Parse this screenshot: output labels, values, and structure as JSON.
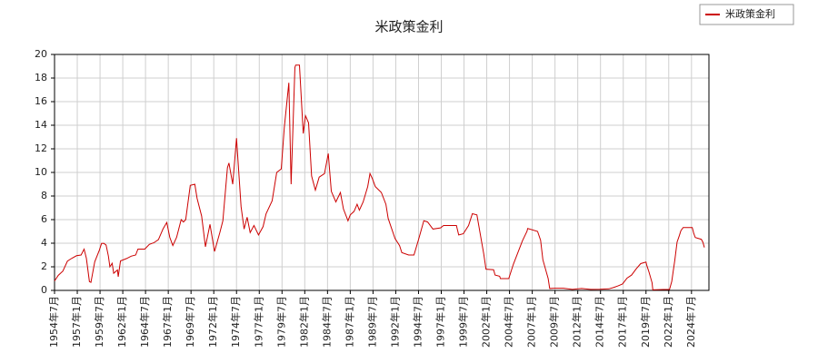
{
  "chart_data": {
    "type": "line",
    "title": "米政策金利",
    "x": [
      "1954-07",
      "1954-12",
      "1955-06",
      "1955-12",
      "1956-06",
      "1956-12",
      "1957-06",
      "1957-10",
      "1958-01",
      "1958-05",
      "1958-07",
      "1958-12",
      "1959-06",
      "1959-09",
      "1959-12",
      "1960-03",
      "1960-06",
      "1960-08",
      "1960-11",
      "1961-01",
      "1961-06",
      "1961-07",
      "1961-10",
      "1962-06",
      "1962-12",
      "1963-06",
      "1963-09",
      "1964-06",
      "1964-12",
      "1965-06",
      "1965-12",
      "1966-06",
      "1966-11",
      "1967-03",
      "1967-07",
      "1967-12",
      "1968-06",
      "1968-09",
      "1968-12",
      "1969-06",
      "1969-12",
      "1970-03",
      "1970-09",
      "1971-02",
      "1971-08",
      "1972-02",
      "1972-09",
      "1973-01",
      "1973-07",
      "1973-09",
      "1974-02",
      "1974-07",
      "1974-10",
      "1975-01",
      "1975-05",
      "1975-09",
      "1976-01",
      "1976-06",
      "1976-12",
      "1977-06",
      "1977-10",
      "1978-06",
      "1978-12",
      "1979-06",
      "1979-10",
      "1980-04",
      "1980-07",
      "1980-12",
      "1981-01",
      "1981-06",
      "1981-11",
      "1982-02",
      "1982-06",
      "1982-10",
      "1983-03",
      "1983-08",
      "1984-03",
      "1984-08",
      "1984-12",
      "1985-06",
      "1985-12",
      "1986-04",
      "1986-10",
      "1987-01",
      "1987-06",
      "1987-10",
      "1988-01",
      "1988-06",
      "1988-12",
      "1989-03",
      "1989-06",
      "1989-10",
      "1990-06",
      "1990-12",
      "1991-03",
      "1991-12",
      "1992-06",
      "1992-09",
      "1993-06",
      "1994-01",
      "1994-07",
      "1995-02",
      "1995-07",
      "1996-02",
      "1996-12",
      "1997-04",
      "1998-09",
      "1998-12",
      "1999-06",
      "2000-01",
      "2000-06",
      "2000-12",
      "2001-03",
      "2001-09",
      "2001-12",
      "2002-10",
      "2002-12",
      "2003-06",
      "2003-07",
      "2004-06",
      "2004-12",
      "2005-12",
      "2006-06",
      "2006-07",
      "2007-08",
      "2007-12",
      "2008-03",
      "2008-10",
      "2008-12",
      "2009-06",
      "2010-06",
      "2011-06",
      "2012-06",
      "2013-06",
      "2014-06",
      "2015-06",
      "2015-12",
      "2016-06",
      "2016-12",
      "2017-06",
      "2017-12",
      "2018-06",
      "2018-12",
      "2019-07",
      "2019-08",
      "2019-11",
      "2020-03",
      "2020-04",
      "2021-06",
      "2022-02",
      "2022-05",
      "2022-07",
      "2022-09",
      "2022-12",
      "2023-03",
      "2023-05",
      "2023-08",
      "2024-08",
      "2024-10",
      "2024-12",
      "2025-08",
      "2025-10",
      "2025-12"
    ],
    "series": [
      {
        "name": "米政策金利",
        "color": "#cc0000",
        "values": [
          0.8,
          1.28,
          1.64,
          2.48,
          2.73,
          2.94,
          3.0,
          3.5,
          2.72,
          0.75,
          0.68,
          2.42,
          3.39,
          3.98,
          3.99,
          3.84,
          2.92,
          2.0,
          2.3,
          1.45,
          1.73,
          1.16,
          2.5,
          2.7,
          2.9,
          3.0,
          3.5,
          3.5,
          3.9,
          4.04,
          4.3,
          5.2,
          5.76,
          4.5,
          3.8,
          4.5,
          6.0,
          5.8,
          6.0,
          8.9,
          9.0,
          7.8,
          6.3,
          3.7,
          5.6,
          3.3,
          4.9,
          5.9,
          10.4,
          10.8,
          9.0,
          12.9,
          10.0,
          7.1,
          5.2,
          6.2,
          4.9,
          5.5,
          4.7,
          5.4,
          6.5,
          7.6,
          10.0,
          10.3,
          13.8,
          17.6,
          9.0,
          18.9,
          19.1,
          19.1,
          13.3,
          14.8,
          14.2,
          9.7,
          8.5,
          9.6,
          9.9,
          11.6,
          8.4,
          7.5,
          8.3,
          6.9,
          5.9,
          6.4,
          6.7,
          7.3,
          6.8,
          7.5,
          8.8,
          9.9,
          9.5,
          8.8,
          8.3,
          7.3,
          6.1,
          4.4,
          3.8,
          3.2,
          3.0,
          3.0,
          4.3,
          5.9,
          5.8,
          5.2,
          5.3,
          5.5,
          5.5,
          4.7,
          4.8,
          5.5,
          6.5,
          6.4,
          5.3,
          3.1,
          1.8,
          1.75,
          1.3,
          1.2,
          1.0,
          1.0,
          2.2,
          4.2,
          5.0,
          5.25,
          5.0,
          4.25,
          2.6,
          1.0,
          0.16,
          0.18,
          0.18,
          0.09,
          0.16,
          0.09,
          0.1,
          0.13,
          0.24,
          0.38,
          0.54,
          1.04,
          1.3,
          1.82,
          2.27,
          2.4,
          2.13,
          1.55,
          0.65,
          0.05,
          0.08,
          0.08,
          0.77,
          1.68,
          2.56,
          4.1,
          4.65,
          5.06,
          5.33,
          5.33,
          4.83,
          4.48,
          4.33,
          4.09,
          3.64
        ]
      }
    ],
    "xlim": [
      "1954-07",
      "2026-06"
    ],
    "xticks": [
      {
        "value": "1954-07",
        "label": "1954年7月"
      },
      {
        "value": "1957-01",
        "label": "1957年1月"
      },
      {
        "value": "1959-07",
        "label": "1959年7月"
      },
      {
        "value": "1962-01",
        "label": "1962年1月"
      },
      {
        "value": "1964-07",
        "label": "1964年7月"
      },
      {
        "value": "1967-01",
        "label": "1967年1月"
      },
      {
        "value": "1969-07",
        "label": "1969年7月"
      },
      {
        "value": "1972-01",
        "label": "1972年1月"
      },
      {
        "value": "1974-07",
        "label": "1974年7月"
      },
      {
        "value": "1977-01",
        "label": "1977年1月"
      },
      {
        "value": "1979-07",
        "label": "1979年7月"
      },
      {
        "value": "1982-01",
        "label": "1982年1月"
      },
      {
        "value": "1984-07",
        "label": "1984年7月"
      },
      {
        "value": "1987-01",
        "label": "1987年1月"
      },
      {
        "value": "1989-07",
        "label": "1989年7月"
      },
      {
        "value": "1992-01",
        "label": "1992年1月"
      },
      {
        "value": "1994-07",
        "label": "1994年7月"
      },
      {
        "value": "1997-01",
        "label": "1997年1月"
      },
      {
        "value": "1999-07",
        "label": "1999年7月"
      },
      {
        "value": "2002-01",
        "label": "2002年1月"
      },
      {
        "value": "2004-07",
        "label": "2004年7月"
      },
      {
        "value": "2007-01",
        "label": "2007年1月"
      },
      {
        "value": "2009-07",
        "label": "2009年7月"
      },
      {
        "value": "2012-01",
        "label": "2012年1月"
      },
      {
        "value": "2014-07",
        "label": "2014年7月"
      },
      {
        "value": "2017-01",
        "label": "2017年1月"
      },
      {
        "value": "2019-07",
        "label": "2019年7月"
      },
      {
        "value": "2022-01",
        "label": "2022年1月"
      },
      {
        "value": "2024-07",
        "label": "2024年7月"
      }
    ],
    "ylim": [
      0,
      20
    ],
    "yticks": [
      0,
      2,
      4,
      6,
      8,
      10,
      12,
      14,
      16,
      18,
      20
    ],
    "grid": true,
    "legend": "top-right"
  }
}
